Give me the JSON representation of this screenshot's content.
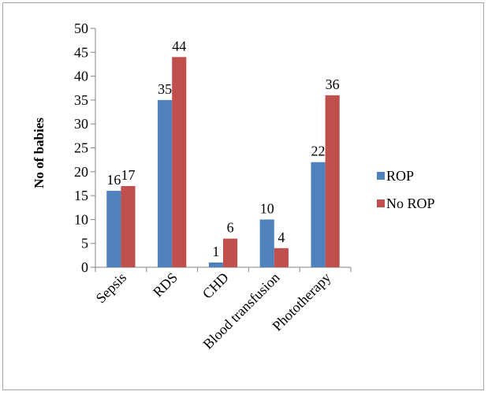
{
  "chart_data": {
    "type": "bar",
    "title": "",
    "xlabel": "",
    "ylabel": "No of babies",
    "ylim": [
      0,
      50
    ],
    "ytick_step": 5,
    "yticks": [
      "0",
      "5",
      "10",
      "15",
      "20",
      "25",
      "30",
      "35",
      "40",
      "45",
      "50"
    ],
    "grid": false,
    "legend_position": "right",
    "categories": [
      "Sepsis",
      "RDS",
      "CHD",
      "Blood transfusion",
      "Phototherapy"
    ],
    "series": [
      {
        "name": "ROP",
        "color": "#4f81bd",
        "values": [
          16,
          35,
          1,
          10,
          22
        ]
      },
      {
        "name": "No ROP",
        "color": "#c0504d",
        "values": [
          17,
          44,
          6,
          4,
          36
        ]
      }
    ]
  }
}
